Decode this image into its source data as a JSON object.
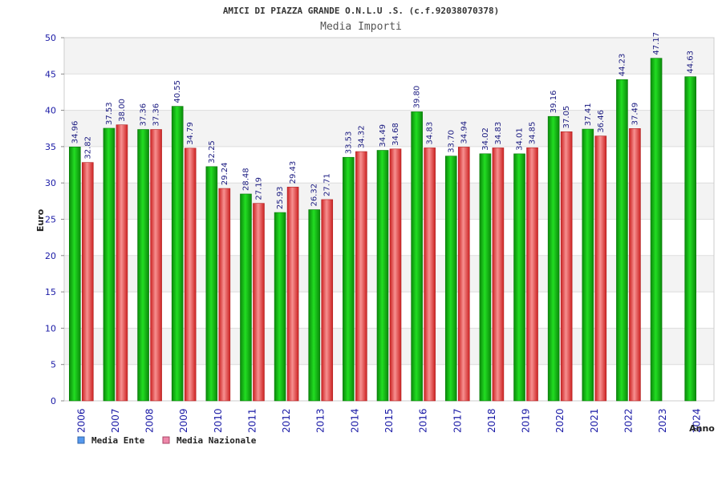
{
  "chart_data": {
    "type": "bar",
    "title": "AMICI DI PIAZZA GRANDE O.N.L.U .S. (c.f.92038070378)",
    "subtitle": "Media Importi",
    "ylabel": "Euro",
    "xlabel": "Anno",
    "ylim": [
      0,
      50
    ],
    "yticks": [
      0,
      5,
      10,
      15,
      20,
      25,
      30,
      35,
      40,
      45,
      50
    ],
    "categories": [
      "2006",
      "2007",
      "2008",
      "2009",
      "2010",
      "2011",
      "2012",
      "2013",
      "2014",
      "2015",
      "2016",
      "2017",
      "2018",
      "2019",
      "2020",
      "2021",
      "2022",
      "2023",
      "2024"
    ],
    "series": [
      {
        "name": "Media Ente",
        "color": "#11bb11",
        "values": [
          34.96,
          37.53,
          37.36,
          40.55,
          32.25,
          28.48,
          25.93,
          26.32,
          33.53,
          34.49,
          39.8,
          33.7,
          34.02,
          34.01,
          39.16,
          37.41,
          44.23,
          47.17,
          44.63
        ],
        "labels": [
          "34.96",
          "37.53",
          "37.36",
          "40.55",
          "32.25",
          "28.48",
          "25.93",
          "26.32",
          "33.53",
          "34.49",
          "39.80",
          "33.70",
          "34.02",
          "34.01",
          "39.16",
          "37.41",
          "44.23",
          "47.17",
          "44.63"
        ]
      },
      {
        "name": "Media Nazionale",
        "color": "#e84040",
        "values": [
          32.82,
          38.0,
          37.36,
          34.79,
          29.24,
          27.19,
          29.43,
          27.71,
          34.32,
          34.68,
          34.83,
          34.94,
          34.83,
          34.85,
          37.05,
          36.46,
          37.49,
          null,
          null
        ],
        "labels": [
          "32.82",
          "38.00",
          "37.36",
          "34.79",
          "29.24",
          "27.19",
          "29.43",
          "27.71",
          "34.32",
          "34.68",
          "34.83",
          "34.94",
          "34.83",
          "34.85",
          "37.05",
          "36.46",
          "37.49",
          null,
          null
        ]
      }
    ],
    "legend": {
      "placement": "bottom-left",
      "items": [
        {
          "label": "Media Ente",
          "swatch": "#5599ee"
        },
        {
          "label": "Media Nazionale",
          "swatch": "#ee88aa"
        }
      ]
    },
    "grid": true,
    "band_colors": [
      "#f3f3f3",
      "#ffffff"
    ]
  }
}
